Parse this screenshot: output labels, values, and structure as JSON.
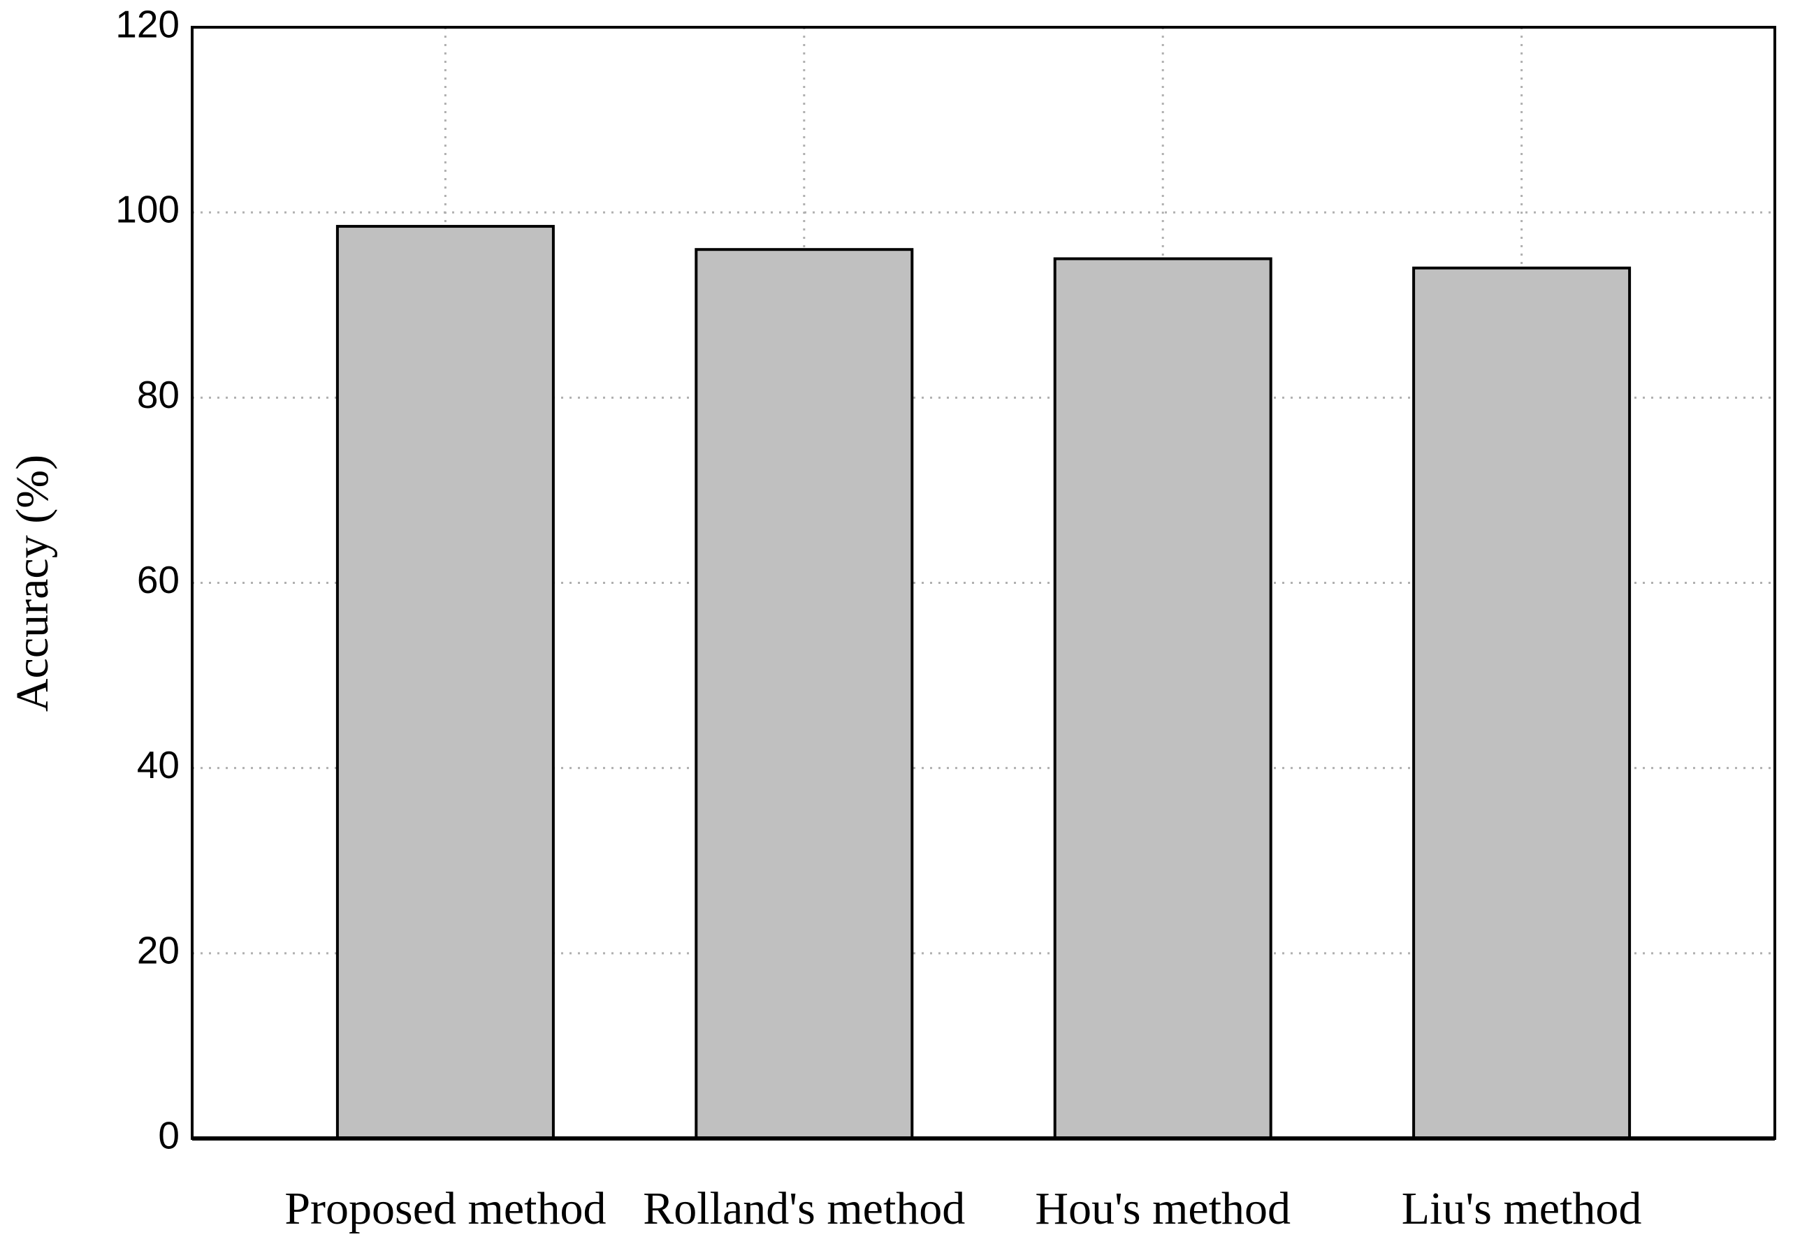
{
  "chart_data": {
    "type": "bar",
    "y_label": "Accuracy (%)",
    "categories": [
      "Proposed method",
      "Rolland's method",
      "Hou's method",
      "Liu's method"
    ],
    "values": [
      98.5,
      96,
      95,
      94
    ],
    "color": "#c0c0c0",
    "ylim": [
      0,
      120
    ],
    "yticks": [
      0,
      20,
      40,
      60,
      80,
      100,
      120
    ],
    "grid": true
  }
}
